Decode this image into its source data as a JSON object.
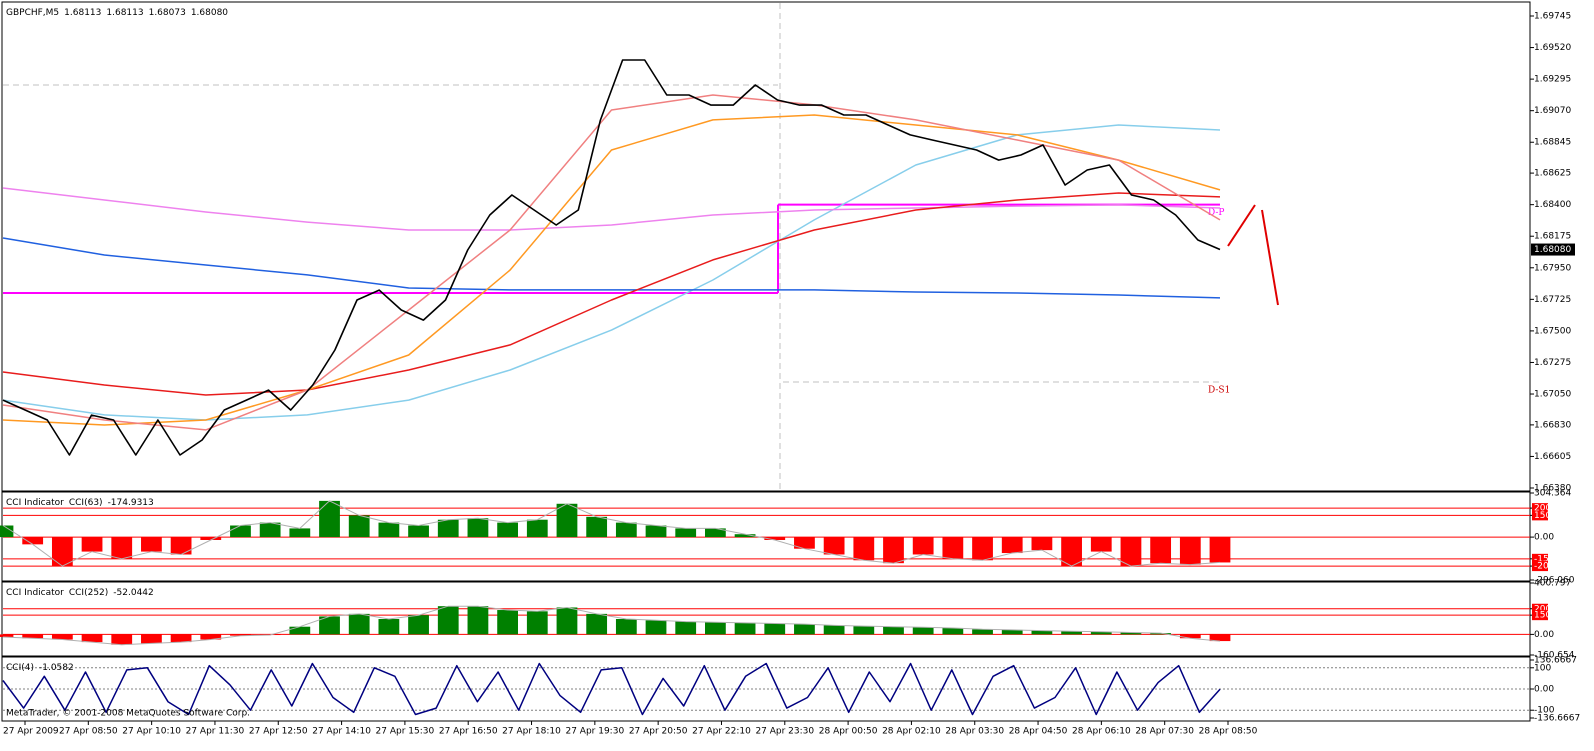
{
  "chart_data": [
    {
      "type": "line",
      "title": "GBPCHF,M5",
      "ohlc": [
        {
          "value": 1.68113,
          "label": "1.68113"
        },
        {
          "value": 1.68113,
          "label": "1.68113"
        },
        {
          "value": 1.68073,
          "label": "1.68073"
        },
        {
          "value": 1.6808,
          "label": "1.68080"
        }
      ],
      "ylim": [
        1.6638,
        1.69745
      ],
      "yticks": [
        1.69745,
        {
          "value": 1.6952,
          "label": "1.69520"
        },
        1.69295,
        {
          "value": 1.6907,
          "label": "1.69070"
        },
        1.68845,
        1.68625,
        {
          "value": 1.684,
          "label": "1.68400"
        },
        1.68175,
        {
          "value": 1.6795,
          "label": "1.67950"
        },
        1.67725,
        {
          "value": 1.675,
          "label": "1.67500"
        },
        1.67275,
        {
          "value": 1.6705,
          "label": "1.67050"
        },
        {
          "value": 1.6683,
          "label": "1.66830"
        },
        1.66605,
        {
          "value": 1.6638,
          "label": "1.66380"
        }
      ],
      "last_price": {
        "value": 1.6808,
        "label": "1.68080"
      },
      "grid": false,
      "series": [
        {
          "color": "#87ceeb",
          "values": [
            1.67007,
            1.66901,
            1.66865,
            1.66901,
            1.67007,
            1.67221,
            1.67506,
            1.67863,
            1.68291,
            1.68683,
            1.68897,
            1.68968,
            1.68932
          ]
        },
        {
          "color": "#ee82ee",
          "values": [
            1.68519,
            1.68433,
            1.68348,
            1.68276,
            1.68219,
            1.68219,
            1.68255,
            1.68326,
            1.68362,
            1.68376,
            1.6839,
            1.68398,
            1.68376
          ]
        },
        {
          "color": "#2060e0",
          "values": [
            1.68162,
            1.68041,
            1.6797,
            1.67899,
            1.67806,
            1.67792,
            1.67792,
            1.67792,
            1.67792,
            1.67777,
            1.6777,
            1.67756,
            1.67735
          ]
        },
        {
          "color": "#e81c1c",
          "values": [
            1.67207,
            1.67114,
            1.67043,
            1.67079,
            1.67221,
            1.674,
            1.6772,
            1.68006,
            1.68219,
            1.68362,
            1.68433,
            1.68483,
            1.68455
          ]
        },
        {
          "color": "#ff9922",
          "values": [
            1.66865,
            1.66829,
            1.66865,
            1.67079,
            1.67328,
            1.67934,
            1.6879,
            1.69004,
            1.69039,
            1.68968,
            1.68897,
            1.68718,
            1.68505
          ]
        },
        {
          "color": "#f08080",
          "values": [
            1.66972,
            1.66865,
            1.66794,
            1.67079,
            1.67649,
            1.68219,
            1.69075,
            1.69182,
            1.69111,
            1.69004,
            1.68861,
            1.68718,
            1.68291
          ]
        },
        {
          "color": "#000000",
          "values": [
            1.67007,
            1.66936,
            1.66865,
            1.66615,
            1.669,
            1.66865,
            1.66615,
            1.66865,
            1.66615,
            1.66722,
            1.66936,
            1.67007,
            1.67078,
            1.66936,
            1.67114,
            1.67364,
            1.6772,
            1.67791,
            1.67649,
            1.67577,
            1.6772,
            1.68077,
            1.68326,
            1.68469,
            1.68362,
            1.68255,
            1.68362,
            1.69003,
            1.69431,
            1.69431,
            1.69182,
            1.69182,
            1.6911,
            1.6911,
            1.69253,
            1.69146,
            1.6911,
            1.6911,
            1.69039,
            1.69039,
            1.68968,
            1.68897,
            1.68861,
            1.68825,
            1.6879,
            1.68718,
            1.68754,
            1.68825,
            1.6854,
            1.68647,
            1.68683,
            1.68469,
            1.68433,
            1.68326,
            1.68148,
            1.6808
          ]
        }
      ],
      "step_line": {
        "color": "#ff00ff",
        "values": [
          1.6777,
          1.684
        ]
      },
      "dashed_levels": [
        1.69253,
        1.67136
      ],
      "annotations": [
        {
          "text": "D-P",
          "value": 1.684,
          "color": "#ff00ff"
        },
        {
          "text": "D-S1",
          "value": 1.67136,
          "color": "#cc0000"
        }
      ]
    },
    {
      "type": "bar",
      "title": "CCI Indicator",
      "indicator": "CCI(63)",
      "last_value": -174.9313,
      "ylim": [
        -296.06,
        304.364
      ],
      "yticks": [
        304.364,
        200,
        150,
        {
          "value": 0,
          "label": "0.00"
        },
        -150,
        -200,
        {
          "value": -296.06,
          "label": "-296.060"
        }
      ],
      "level_color": "#ff0000",
      "level_style": "solid",
      "up_color": "#008000",
      "down_color": "#ff0000",
      "line_color": "#b0b0b0",
      "values": [
        80,
        -50,
        -200,
        -100,
        -150,
        -100,
        -120,
        -20,
        80,
        100,
        60,
        250,
        150,
        100,
        80,
        120,
        130,
        100,
        120,
        230,
        140,
        100,
        80,
        60,
        60,
        20,
        -20,
        -80,
        -120,
        -160,
        -180,
        -120,
        -150,
        -160,
        -110,
        -90,
        -200,
        -100,
        -200,
        -180,
        -190,
        -174.9313
      ]
    },
    {
      "type": "bar",
      "title": "CCI Indicator",
      "indicator": "CCI(252)",
      "last_value": -52.0442,
      "ylim": [
        -160.654,
        400.797
      ],
      "yticks": [
        400.797,
        200,
        150,
        {
          "value": 0,
          "label": "0.00"
        },
        -160.654
      ],
      "level_color": "#ff0000",
      "level_style": "solid",
      "up_color": "#008000",
      "down_color": "#ff0000",
      "line_color": "#b0b0b0",
      "values": [
        -20,
        -30,
        -40,
        -60,
        -80,
        -70,
        -60,
        -40,
        -10,
        -5,
        60,
        140,
        160,
        120,
        150,
        220,
        220,
        190,
        180,
        210,
        160,
        120,
        110,
        100,
        95,
        90,
        85,
        80,
        70,
        65,
        60,
        55,
        50,
        40,
        35,
        30,
        25,
        20,
        15,
        10,
        -30,
        -52.0442
      ]
    },
    {
      "type": "line",
      "indicator": "CCI(4)",
      "last_value": -1.0582,
      "ylim": [
        -136.6667,
        136.6667
      ],
      "yticks": [
        136.6667,
        100,
        {
          "value": 0,
          "label": "0.00"
        },
        -100,
        -136.6667
      ],
      "level_color": "#808080",
      "level_style": "dotted",
      "series": [
        {
          "color": "#000080",
          "values": [
            40,
            -90,
            60,
            -100,
            80,
            -110,
            90,
            100,
            -60,
            -120,
            110,
            20,
            -100,
            90,
            -80,
            120,
            -40,
            -110,
            100,
            60,
            -120,
            -90,
            110,
            -60,
            80,
            -100,
            120,
            -30,
            -110,
            90,
            100,
            -120,
            50,
            -80,
            110,
            -100,
            60,
            120,
            -90,
            -40,
            100,
            -110,
            80,
            -60,
            120,
            -100,
            90,
            -120,
            60,
            110,
            -90,
            -40,
            100,
            -120,
            80,
            -100,
            30,
            110,
            -110,
            -1.0582
          ]
        }
      ]
    }
  ],
  "x_axis_labels": [
    "27 Apr 2009",
    "27 Apr 08:50",
    "27 Apr 10:10",
    "27 Apr 11:30",
    "27 Apr 12:50",
    "27 Apr 14:10",
    "27 Apr 15:30",
    "27 Apr 16:50",
    "27 Apr 18:10",
    "27 Apr 19:30",
    "27 Apr 20:50",
    "27 Apr 22:10",
    "27 Apr 23:30",
    "28 Apr 00:50",
    "28 Apr 02:10",
    "28 Apr 03:30",
    "28 Apr 04:50",
    "28 Apr 06:10",
    "28 Apr 07:30",
    "28 Apr 08:50"
  ],
  "footer": "MetaTrader, © 2001-2008 MetaQuotes Software Corp."
}
